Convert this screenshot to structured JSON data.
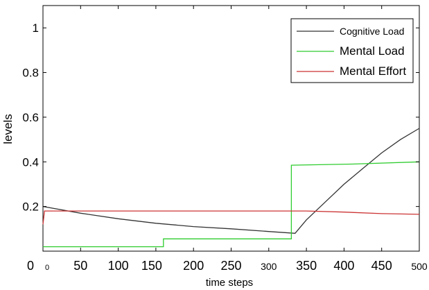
{
  "chart_data": {
    "type": "line",
    "title": "",
    "xlabel": "time steps",
    "ylabel": "levels",
    "xlim": [
      0,
      500
    ],
    "ylim": [
      0,
      1.1
    ],
    "grid": false,
    "legend_position": "top-right",
    "x_ticks": [
      {
        "value": 0,
        "label": "0"
      },
      {
        "value": 50,
        "label": "50"
      },
      {
        "value": 100,
        "label": "100"
      },
      {
        "value": 150,
        "label": "150"
      },
      {
        "value": 200,
        "label": "200"
      },
      {
        "value": 250,
        "label": "250"
      },
      {
        "value": 300,
        "label": "300"
      },
      {
        "value": 350,
        "label": "350"
      },
      {
        "value": 400,
        "label": "400"
      },
      {
        "value": 450,
        "label": "450"
      },
      {
        "value": 500,
        "label": "500"
      }
    ],
    "y_ticks": [
      {
        "value": 0.2,
        "label": "0.2"
      },
      {
        "value": 0.4,
        "label": "0.4"
      },
      {
        "value": 0.6,
        "label": "0.6"
      },
      {
        "value": 0.8,
        "label": "0.8"
      },
      {
        "value": 1.0,
        "label": "1"
      }
    ],
    "origin_labels": {
      "y_zero": "0",
      "x_zero": "0"
    },
    "series": [
      {
        "name": "Cognitive Load",
        "color": "#333333",
        "x": [
          0,
          50,
          100,
          150,
          200,
          250,
          300,
          335,
          350,
          375,
          400,
          425,
          450,
          475,
          500
        ],
        "y": [
          0.2,
          0.17,
          0.145,
          0.125,
          0.11,
          0.1,
          0.088,
          0.08,
          0.14,
          0.22,
          0.3,
          0.37,
          0.44,
          0.5,
          0.55
        ]
      },
      {
        "name": "Mental Load",
        "color": "#2ecc2e",
        "x": [
          0,
          160,
          160,
          330,
          330,
          410,
          500
        ],
        "y": [
          0.02,
          0.02,
          0.055,
          0.055,
          0.385,
          0.39,
          0.4
        ]
      },
      {
        "name": "Mental Effort",
        "color": "#cc3333",
        "x": [
          0,
          2,
          5,
          350,
          400,
          450,
          500
        ],
        "y": [
          0.12,
          0.18,
          0.18,
          0.18,
          0.175,
          0.168,
          0.165
        ]
      }
    ]
  }
}
